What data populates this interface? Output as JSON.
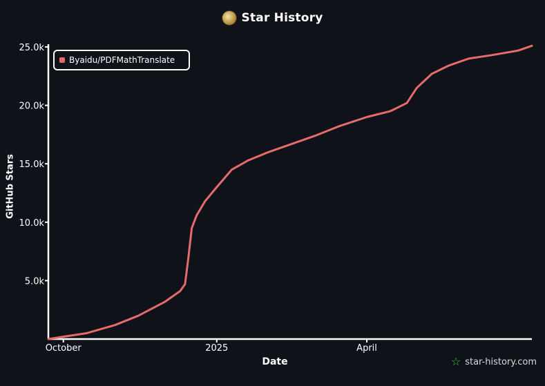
{
  "header": {
    "title": "Star History",
    "logo_icon": "repo-avatar-icon"
  },
  "watermark": {
    "text": "star-history.com",
    "icon": "star-icon"
  },
  "colors": {
    "background": "#10121a",
    "series": "#e66b6b",
    "watermark_icon": "#2ecc40"
  },
  "chart_data": {
    "type": "line",
    "title": "Star History",
    "xlabel": "Date",
    "ylabel": "GitHub Stars",
    "x_ticks": [
      "October",
      "2025",
      "April"
    ],
    "y_ticks": [
      "5.0k",
      "10.0k",
      "15.0k",
      "20.0k",
      "25.0k"
    ],
    "y_tick_values": [
      5000,
      10000,
      15000,
      20000,
      25000
    ],
    "ylim": [
      0,
      25000
    ],
    "xlim": [
      "2024-09-22",
      "2025-07-09"
    ],
    "x_tick_dates": [
      "2024-10-01",
      "2025-01-01",
      "2025-04-01"
    ],
    "legend": "top-left",
    "grid": false,
    "series": [
      {
        "name": "Byaidu/PDFMathTranslate",
        "color": "#e66b6b",
        "points": [
          [
            "2024-09-22",
            0
          ],
          [
            "2024-10-01",
            200
          ],
          [
            "2024-10-15",
            500
          ],
          [
            "2024-11-01",
            1200
          ],
          [
            "2024-11-15",
            2000
          ],
          [
            "2024-12-01",
            3200
          ],
          [
            "2024-12-10",
            4100
          ],
          [
            "2024-12-13",
            4700
          ],
          [
            "2024-12-15",
            7000
          ],
          [
            "2024-12-17",
            9500
          ],
          [
            "2024-12-20",
            10600
          ],
          [
            "2024-12-25",
            11800
          ],
          [
            "2025-01-01",
            13000
          ],
          [
            "2025-01-10",
            14500
          ],
          [
            "2025-01-20",
            15300
          ],
          [
            "2025-02-01",
            16000
          ],
          [
            "2025-02-15",
            16700
          ],
          [
            "2025-03-01",
            17400
          ],
          [
            "2025-03-15",
            18200
          ],
          [
            "2025-04-01",
            19000
          ],
          [
            "2025-04-15",
            19500
          ],
          [
            "2025-04-25",
            20200
          ],
          [
            "2025-05-01",
            21500
          ],
          [
            "2025-05-10",
            22700
          ],
          [
            "2025-05-20",
            23400
          ],
          [
            "2025-06-01",
            24000
          ],
          [
            "2025-06-15",
            24300
          ],
          [
            "2025-07-01",
            24700
          ],
          [
            "2025-07-09",
            25100
          ]
        ]
      }
    ]
  }
}
